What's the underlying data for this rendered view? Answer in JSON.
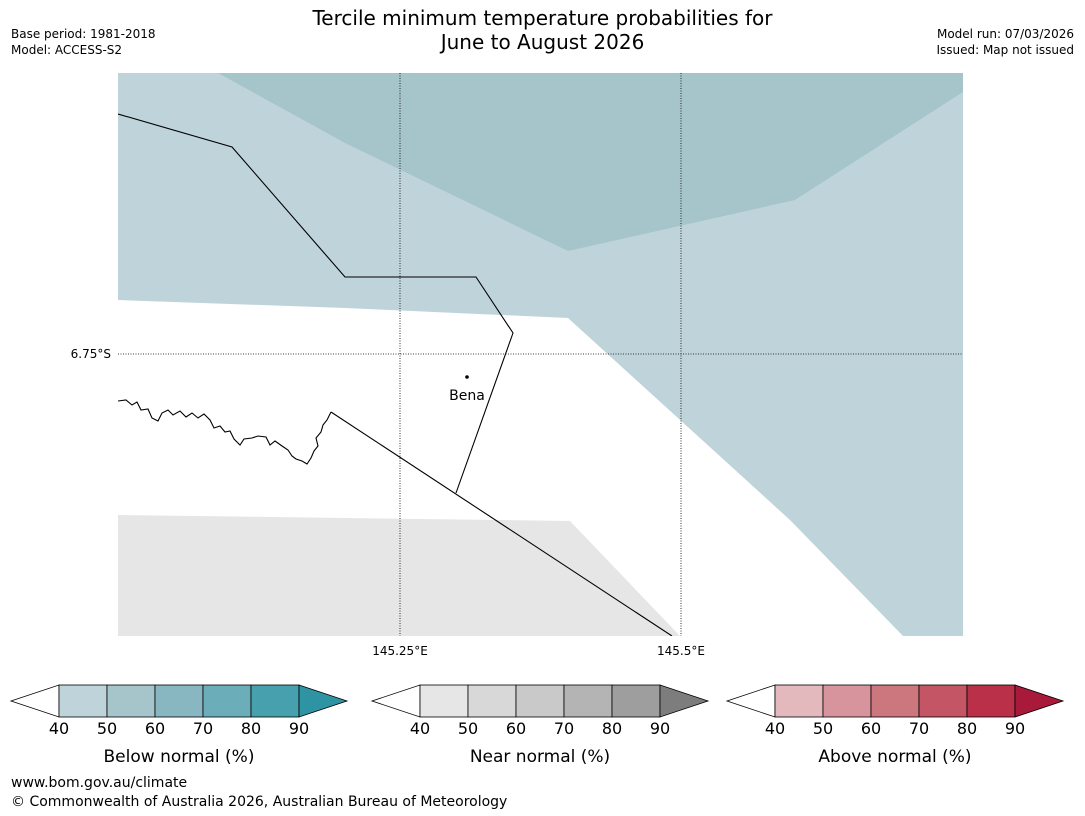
{
  "header": {
    "title_line1": "Tercile minimum temperature probabilities for",
    "title_line2": "June to August 2026",
    "base_period": "Base period: 1981-2018",
    "model": "Model: ACCESS-S2",
    "model_run": "Model run: 07/03/2026",
    "issued": "Issued: Map not issued"
  },
  "map": {
    "latitude_label": "6.75°S",
    "longitude_labels": [
      "145.25°E",
      "145.5°E"
    ],
    "place": "Bena",
    "zones": [
      {
        "category": "Below normal",
        "probability_band": "50-60"
      },
      {
        "category": "Below normal",
        "probability_band": "40-50"
      },
      {
        "category": "Near normal",
        "probability_band": "40-50"
      }
    ]
  },
  "colorbars": [
    {
      "title": "Below normal (%)",
      "ticks": [
        "40",
        "50",
        "60",
        "70",
        "80",
        "90"
      ],
      "colors": [
        "#bfd4da",
        "#a6c5ca",
        "#88b6c1",
        "#6badb9",
        "#47a0ad",
        "#2e93a3"
      ]
    },
    {
      "title": "Near normal (%)",
      "ticks": [
        "40",
        "50",
        "60",
        "70",
        "80",
        "90"
      ],
      "colors": [
        "#e6e6e6",
        "#d8d8d8",
        "#c9c9c9",
        "#b4b4b4",
        "#9e9e9e",
        "#7d7d7d"
      ]
    },
    {
      "title": "Above normal (%)",
      "ticks": [
        "40",
        "50",
        "60",
        "70",
        "80",
        "90"
      ],
      "colors": [
        "#e3b9bd",
        "#d8949c",
        "#cc767e",
        "#c35564",
        "#bb3049",
        "#a8193a"
      ]
    }
  ],
  "footer": {
    "url": "www.bom.gov.au/climate",
    "copyright": "© Commonwealth of Australia 2026, Australian Bureau of Meteorology"
  }
}
